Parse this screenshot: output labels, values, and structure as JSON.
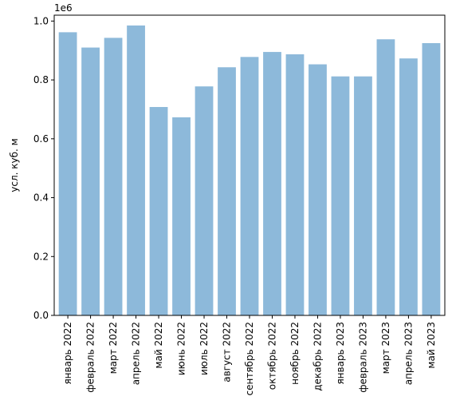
{
  "chart_data": {
    "type": "bar",
    "title": "",
    "xlabel": "",
    "ylabel": "усл. куб. м",
    "offset_text": "1e6",
    "ylim": [
      0,
      1.02
    ],
    "yticks": [
      0.0,
      0.2,
      0.4,
      0.6,
      0.8,
      1.0
    ],
    "ytick_labels": [
      "0.0",
      "0.2",
      "0.4",
      "0.6",
      "0.8",
      "1.0"
    ],
    "grid": false,
    "bar_color": "#8DB9DA",
    "categories": [
      "январь 2022",
      "февраль 2022",
      "март 2022",
      "апрель 2022",
      "май 2022",
      "июнь 2022",
      "июль 2022",
      "август 2022",
      "сентябрь 2022",
      "октябрь 2022",
      "ноябрь 2022",
      "декабрь 2022",
      "январь 2023",
      "февраль 2023",
      "март 2023",
      "апрель 2023",
      "май 2023"
    ],
    "values": [
      962000,
      910000,
      943000,
      985000,
      708000,
      673000,
      778000,
      843000,
      878000,
      895000,
      887000,
      853000,
      812000,
      812000,
      938000,
      873000,
      925000
    ]
  }
}
